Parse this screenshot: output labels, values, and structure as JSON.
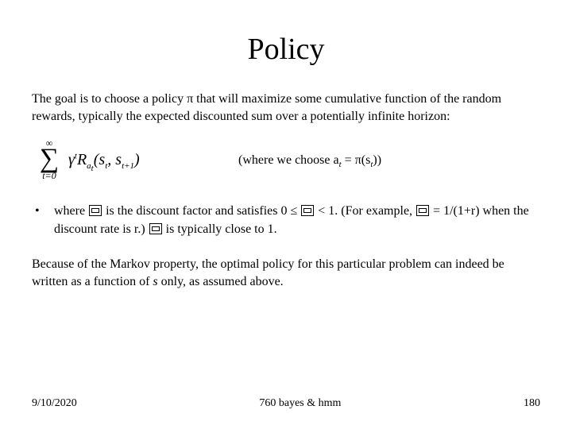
{
  "title": "Policy",
  "intro": "The goal is to choose a policy π that will maximize some cumulative function of the random rewards, typically the expected discounted sum over a potentially infinite horizon:",
  "formula": {
    "sum_top": "∞",
    "sum_bottom": "t=0",
    "gamma": "γ",
    "gamma_sup": "t",
    "R": "R",
    "R_sub": "a",
    "R_sub2": "t",
    "open": "(",
    "s1": "s",
    "s1_sub": "t",
    "comma": ", ",
    "s2": "s",
    "s2_sub": "t+1",
    "close": ")"
  },
  "choose_prefix": "(where we choose a",
  "choose_sub": "t",
  "choose_mid": " = π(s",
  "choose_sub2": "t",
  "choose_suffix": "))",
  "bullet_pre": "where ",
  "bullet_mid1": "is the discount factor and satisfies 0 ≤ ",
  "bullet_mid2": "< 1. (For example, ",
  "bullet_mid3": "= 1/(1+r) when the discount rate is r.) ",
  "bullet_end": "is typically close to 1.",
  "conclusion_pre": "Because of the Markov property, the optimal policy for this particular problem can indeed be written as a function of ",
  "conclusion_s": "s",
  "conclusion_post": " only, as assumed above.",
  "footer": {
    "date": "9/10/2020",
    "center": "760 bayes & hmm",
    "page": "180"
  },
  "colors": {
    "text": "#000000",
    "background": "#ffffff"
  },
  "fonts": {
    "body_family": "Times New Roman",
    "title_size_pt": 28,
    "body_size_pt": 12
  }
}
